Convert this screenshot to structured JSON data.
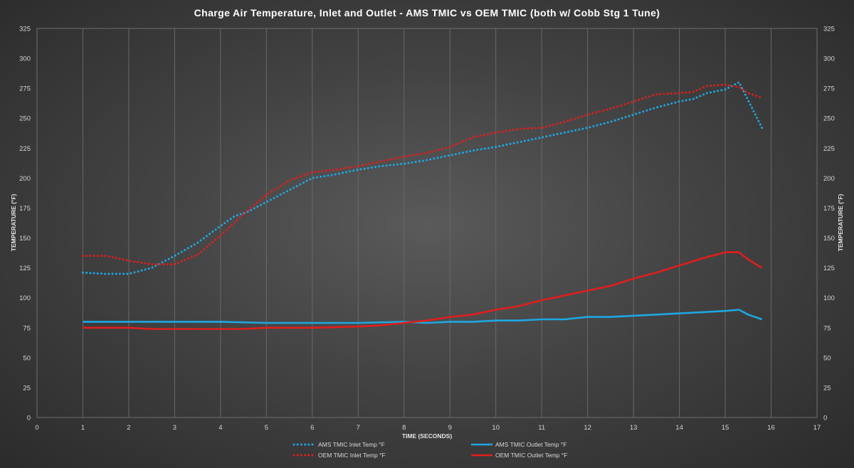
{
  "chart_data": {
    "type": "line",
    "title": "Charge Air Temperature, Inlet and Outlet - AMS TMIC vs OEM TMIC (both w/ Cobb Stg 1 Tune)",
    "xlabel": "TIME (SECONDS)",
    "ylabel": "TEMPERATURE (°F)",
    "ylabel_right": "TEMPERATURE (°F)",
    "xlim": [
      0,
      17
    ],
    "ylim": [
      0,
      325
    ],
    "x_ticks": [
      "0",
      "1",
      "2",
      "3",
      "4",
      "5",
      "6",
      "7",
      "8",
      "9",
      "10",
      "11",
      "12",
      "13",
      "14",
      "15",
      "16",
      "17"
    ],
    "y_ticks": [
      "0",
      "25",
      "50",
      "75",
      "100",
      "125",
      "150",
      "175",
      "200",
      "225",
      "250",
      "275",
      "300",
      "325"
    ],
    "grid": "vertical",
    "legend_position": "bottom",
    "series": [
      {
        "name": "AMS TMIC Inlet Temp °F",
        "style": "dotted",
        "color": "#1ea7e1",
        "x": [
          1,
          1.5,
          2,
          2.5,
          3,
          3.5,
          4,
          4.3,
          4.6,
          5,
          5.5,
          6,
          6.5,
          7,
          7.5,
          8,
          8.5,
          9,
          9.5,
          10,
          10.5,
          11,
          11.5,
          12,
          12.5,
          13,
          13.5,
          14,
          14.3,
          14.6,
          15,
          15.3,
          15.5,
          15.8
        ],
        "y": [
          121,
          120,
          120,
          125,
          135,
          146,
          160,
          168,
          172,
          180,
          190,
          200,
          203,
          207,
          210,
          212,
          215,
          219,
          223,
          226,
          230,
          234,
          238,
          242,
          247,
          253,
          259,
          264,
          266,
          271,
          274,
          280,
          265,
          242
        ]
      },
      {
        "name": "OEM TMIC Inlet Temp °F",
        "style": "dotted",
        "color": "#e01e1e",
        "x": [
          1,
          1.5,
          2,
          2.5,
          3,
          3.5,
          4,
          4.5,
          5,
          5.5,
          6,
          6.5,
          7,
          7.5,
          8,
          8.5,
          9,
          9.5,
          10,
          10.5,
          11,
          11.5,
          12,
          12.5,
          13,
          13.5,
          14,
          14.3,
          14.6,
          15,
          15.3,
          15.5,
          15.8
        ],
        "y": [
          135,
          135,
          131,
          128,
          128,
          136,
          152,
          170,
          186,
          198,
          205,
          207,
          210,
          214,
          218,
          221,
          226,
          234,
          238,
          241,
          242,
          247,
          253,
          258,
          264,
          270,
          271,
          272,
          277,
          278,
          276,
          271,
          267
        ]
      },
      {
        "name": "AMS TMIC Outlet Temp °F",
        "style": "solid",
        "color": "#1ea7e1",
        "x": [
          1,
          2,
          3,
          4,
          5,
          5.5,
          6,
          7,
          8,
          8.5,
          9,
          9.5,
          10,
          10.5,
          11,
          11.5,
          12,
          12.5,
          13,
          13.5,
          14,
          14.5,
          15,
          15.3,
          15.5,
          15.8
        ],
        "y": [
          80,
          80,
          80,
          80,
          79,
          79,
          79,
          79,
          80,
          79,
          80,
          80,
          81,
          81,
          82,
          82,
          84,
          84,
          85,
          86,
          87,
          88,
          89,
          90,
          86,
          82
        ]
      },
      {
        "name": "OEM TMIC Outlet Temp °F",
        "style": "solid",
        "color": "#e01e1e",
        "x": [
          1,
          2,
          2.5,
          3,
          4,
          4.5,
          5,
          6,
          7,
          7.5,
          8,
          8.5,
          9,
          9.5,
          10,
          10.5,
          11,
          11.5,
          12,
          12.5,
          13,
          13.5,
          14,
          14.5,
          15,
          15.3,
          15.5,
          15.8
        ],
        "y": [
          75,
          75,
          74,
          74,
          74,
          74,
          75,
          75,
          76,
          77,
          79,
          81,
          84,
          86,
          90,
          93,
          98,
          102,
          106,
          110,
          116,
          121,
          127,
          133,
          138,
          138,
          132,
          125
        ]
      }
    ]
  }
}
